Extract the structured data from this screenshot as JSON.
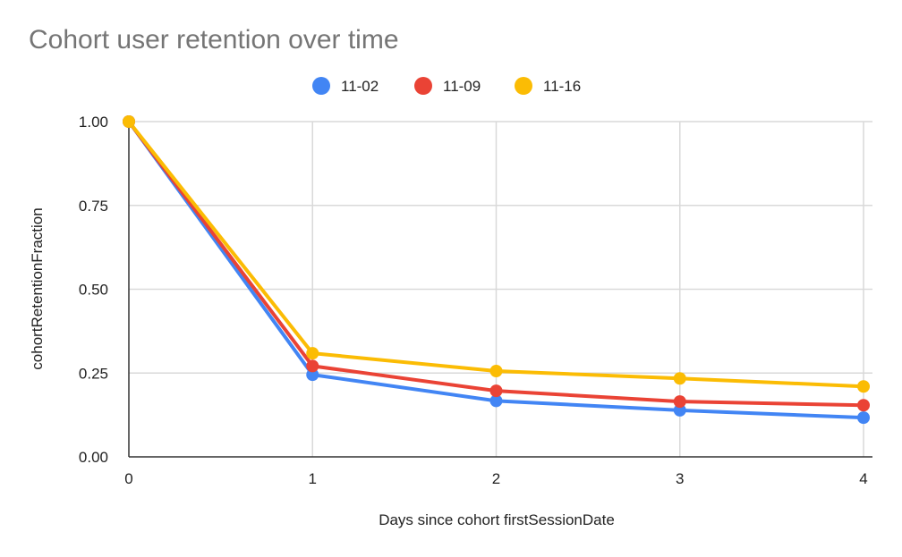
{
  "chart_data": {
    "type": "line",
    "title": "Cohort user retention over time",
    "xlabel": "Days since cohort firstSessionDate",
    "ylabel": "cohortRetentionFraction",
    "x": [
      0,
      1,
      2,
      3,
      4
    ],
    "xticks": [
      "0",
      "1",
      "2",
      "3",
      "4"
    ],
    "yticks": [
      "0.00",
      "0.25",
      "0.50",
      "0.75",
      "1.00"
    ],
    "xlim": [
      0,
      4
    ],
    "ylim": [
      0,
      1
    ],
    "grid": true,
    "legend": "top",
    "series": [
      {
        "name": "11-02",
        "color": "#4285f4",
        "values": [
          1.0,
          0.245,
          0.167,
          0.139,
          0.117
        ]
      },
      {
        "name": "11-09",
        "color": "#ea4335",
        "values": [
          1.0,
          0.271,
          0.197,
          0.165,
          0.154
        ]
      },
      {
        "name": "11-16",
        "color": "#fbbc04",
        "values": [
          1.0,
          0.309,
          0.256,
          0.234,
          0.21
        ]
      }
    ]
  }
}
